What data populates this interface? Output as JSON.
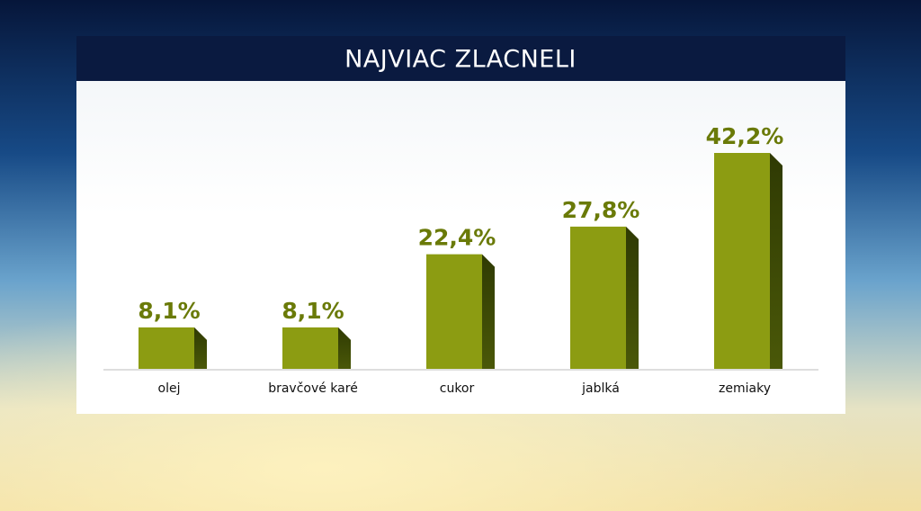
{
  "chart_data": {
    "type": "bar",
    "title": "NAJVIAC ZLACNELI",
    "categories": [
      "olej",
      "bravčové karé",
      "cukor",
      "jablká",
      "zemiaky"
    ],
    "values": [
      8.1,
      8.1,
      22.4,
      27.8,
      42.2
    ],
    "value_labels": [
      "8,1%",
      "8,1%",
      "22,4%",
      "27,8%",
      "42,2%"
    ],
    "color": "#8c9c12"
  }
}
